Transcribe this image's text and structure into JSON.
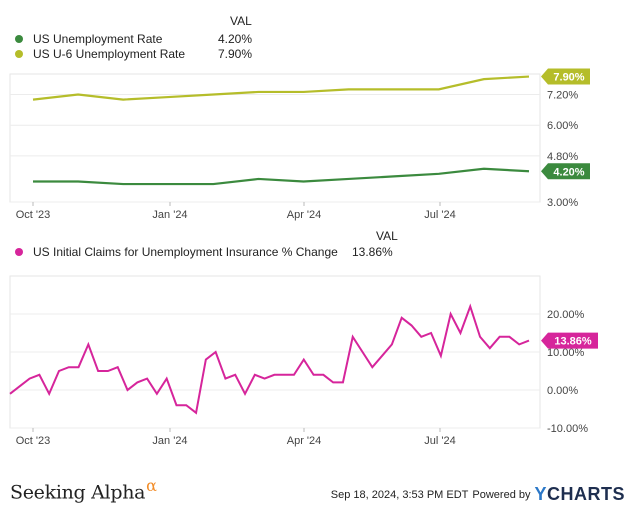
{
  "chart_data": [
    {
      "type": "line",
      "legend_header": "VAL",
      "x_ticks": [
        "Oct '23",
        "Jan '24",
        "Apr '24",
        "Jul '24"
      ],
      "y_ticks": [
        "3.00%",
        "4.80%",
        "6.00%",
        "7.20%"
      ],
      "ylim": [
        3.0,
        8.0
      ],
      "series": [
        {
          "name": "US Unemployment Rate",
          "legend_value": "4.20%",
          "color": "#3b8a3e",
          "x": [
            "2023-09",
            "2023-10",
            "2023-11",
            "2023-12",
            "2024-01",
            "2024-02",
            "2024-03",
            "2024-04",
            "2024-05",
            "2024-06",
            "2024-07",
            "2024-08"
          ],
          "values": [
            3.8,
            3.8,
            3.7,
            3.7,
            3.7,
            3.9,
            3.8,
            3.9,
            4.0,
            4.1,
            4.3,
            4.2
          ],
          "badge": "4.20%"
        },
        {
          "name": "US U-6 Unemployment Rate",
          "legend_value": "7.90%",
          "color": "#b5bd2a",
          "x": [
            "2023-09",
            "2023-10",
            "2023-11",
            "2023-12",
            "2024-01",
            "2024-02",
            "2024-03",
            "2024-04",
            "2024-05",
            "2024-06",
            "2024-07",
            "2024-08"
          ],
          "values": [
            7.0,
            7.2,
            7.0,
            7.1,
            7.2,
            7.3,
            7.3,
            7.4,
            7.4,
            7.4,
            7.8,
            7.9
          ],
          "badge": "7.90%"
        }
      ]
    },
    {
      "type": "line",
      "legend_header": "VAL",
      "x_ticks": [
        "Oct '23",
        "Jan '24",
        "Apr '24",
        "Jul '24"
      ],
      "y_ticks": [
        "20.00%",
        "10.00%",
        "0.00%",
        "-10.00%"
      ],
      "ylim": [
        -10,
        30
      ],
      "series": [
        {
          "name": "US Initial Claims for Unemployment Insurance % Change",
          "legend_value": "13.86%",
          "color": "#d6259b",
          "values": [
            -1,
            1,
            3,
            4,
            -1,
            5,
            6,
            6,
            12,
            5,
            5,
            6,
            0,
            2,
            3,
            -1,
            3,
            -4,
            -4,
            -6,
            8,
            10,
            3,
            4,
            -1,
            4,
            3,
            4,
            4,
            4,
            8,
            4,
            4,
            2,
            2,
            14,
            10,
            6,
            9,
            12,
            19,
            17,
            14,
            15,
            9,
            20,
            15,
            22,
            14,
            11,
            14,
            14,
            12,
            13
          ],
          "badge": "13.86%"
        }
      ]
    }
  ],
  "footer": {
    "timestamp": "Sep 18, 2024, 3:53 PM EDT",
    "powered_by": "Powered by",
    "brand_logo": "YCHARTS",
    "brand_logo_y": "Y",
    "brand_logo_rest": "CHARTS",
    "left_logo": "Seeking Alpha",
    "left_logo_symbol": "α"
  }
}
